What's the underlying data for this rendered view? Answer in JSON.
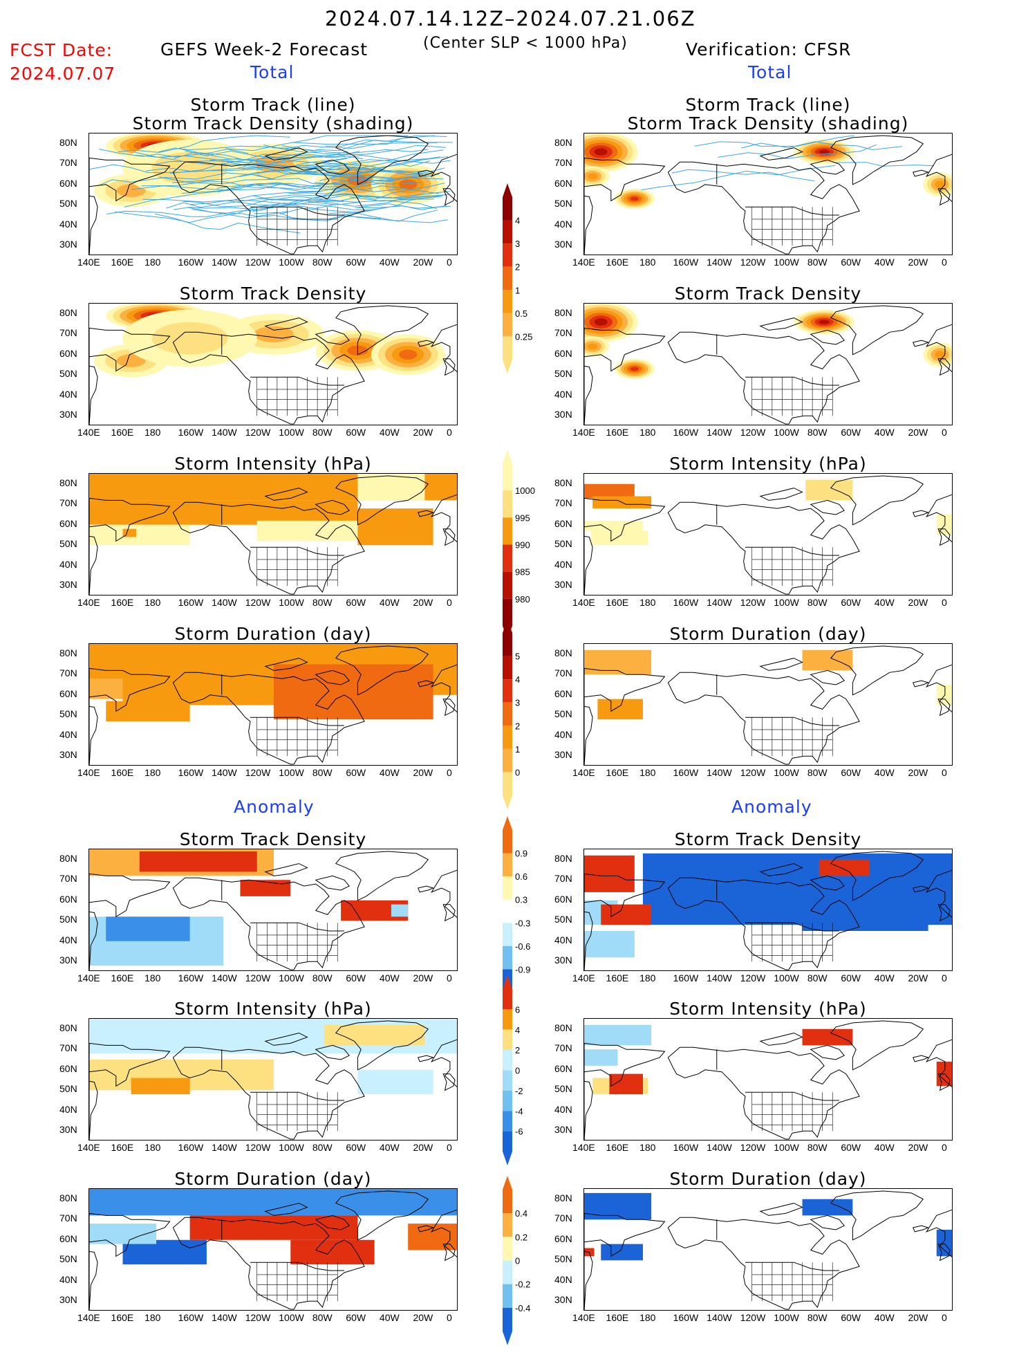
{
  "header": {
    "date_range": "2024.07.14.12Z–2024.07.21.06Z",
    "fcst_label": "FCST Date:",
    "fcst_date": "2024.07.07",
    "left_title": "GEFS Week-2 Forecast",
    "center_note": "(Center SLP < 1000 hPa)",
    "right_title": "Verification: CFSR",
    "section_total": "Total",
    "section_anomaly": "Anomaly"
  },
  "panel_titles": {
    "track_line": "Storm Track (line)",
    "track_shading": "Storm Track Density (shading)",
    "density": "Storm Track Density",
    "intensity": "Storm Intensity (hPa)",
    "duration": "Storm Duration (day)"
  },
  "axes": {
    "lon_labels": [
      "140E",
      "160E",
      "180",
      "160W",
      "140W",
      "120W",
      "100W",
      "80W",
      "60W",
      "40W",
      "20W",
      "0"
    ],
    "lat_labels": [
      "80N",
      "70N",
      "60N",
      "50N",
      "40N",
      "30N"
    ]
  },
  "colorbars": {
    "density": [
      "0.25",
      "0.5",
      "1",
      "2",
      "3",
      "4"
    ],
    "intensity": [
      "1000",
      "995",
      "990",
      "985",
      "980"
    ],
    "duration": [
      "0",
      "1",
      "2",
      "3",
      "4",
      "5"
    ],
    "density_anom": [
      "-0.9",
      "-0.6",
      "-0.3",
      "0.3",
      "0.6",
      "0.9"
    ],
    "intensity_anom": [
      "-6",
      "-4",
      "-2",
      "0",
      "2",
      "4",
      "6"
    ],
    "duration_anom": [
      "-0.4",
      "-0.2",
      "0",
      "0.2",
      "0.4"
    ]
  },
  "colors": {
    "warm": [
      "#fff8b0",
      "#fde080",
      "#fbb040",
      "#f79a10",
      "#ef6a10",
      "#e03010",
      "#b81000",
      "#8c0000"
    ],
    "cool": [
      "#c8f0ff",
      "#a0dcf8",
      "#70c0f0",
      "#3a90e8",
      "#1a64d8"
    ],
    "track_line": "#3aa8e8"
  }
}
